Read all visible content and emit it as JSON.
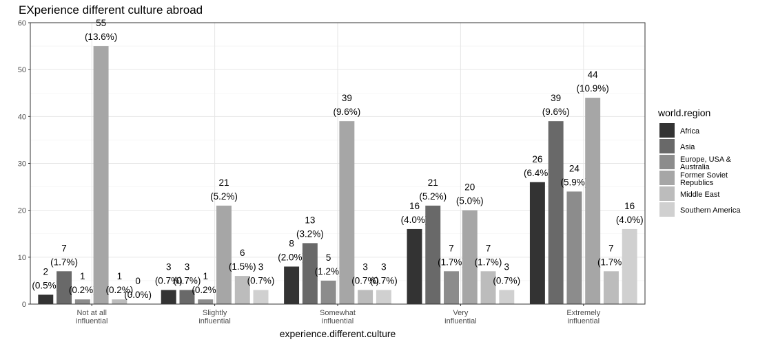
{
  "chart_data": {
    "type": "bar",
    "title": "EXperience different culture abroad",
    "xlabel": "experience.different.culture",
    "ylabel": "",
    "ylim": [
      0,
      60
    ],
    "yticks": [
      "0",
      "10",
      "20",
      "30",
      "40",
      "50",
      "60"
    ],
    "grid": true,
    "legend": {
      "title": "world.region",
      "position": "right"
    },
    "categories": [
      [
        "Not at all",
        "influential"
      ],
      [
        "Slightly",
        "influential"
      ],
      [
        "Somewhat",
        "influential"
      ],
      [
        "Very",
        "influential"
      ],
      [
        "Extremely",
        "influential"
      ]
    ],
    "series": [
      {
        "name": [
          "Africa"
        ],
        "color": "#333333",
        "values": [
          2,
          3,
          8,
          16,
          26
        ],
        "labels": [
          "(0.5%)",
          "(0.7%)",
          "(2.0%)",
          "(4.0%)",
          "(6.4%)"
        ]
      },
      {
        "name": [
          "Asia"
        ],
        "color": "#696969",
        "values": [
          7,
          3,
          13,
          21,
          39
        ],
        "labels": [
          "(1.7%)",
          "(0.7%)",
          "(3.2%)",
          "(5.2%)",
          "(9.6%)"
        ]
      },
      {
        "name": [
          "Europe, USA &",
          "Australia"
        ],
        "color": "#8c8c8c",
        "values": [
          1,
          1,
          5,
          7,
          24
        ],
        "labels": [
          "(0.2%)",
          "(0.2%)",
          "(1.2%)",
          "(1.7%)",
          "(5.9%)"
        ]
      },
      {
        "name": [
          "Former Soviet",
          "Republics"
        ],
        "color": "#a6a6a6",
        "values": [
          55,
          21,
          39,
          20,
          44
        ],
        "labels": [
          "(13.6%)",
          "(5.2%)",
          "(9.6%)",
          "(5.0%)",
          "(10.9%)"
        ]
      },
      {
        "name": [
          "Middle East"
        ],
        "color": "#bcbcbc",
        "values": [
          1,
          6,
          3,
          7,
          7
        ],
        "labels": [
          "(0.2%)",
          "(1.5%)",
          "(0.7%)",
          "(1.7%)",
          "(1.7%)"
        ]
      },
      {
        "name": [
          "Southern America"
        ],
        "color": "#d0d0d0",
        "values": [
          0,
          3,
          3,
          3,
          16
        ],
        "labels": [
          "(0.0%)",
          "(0.7%)",
          "(0.7%)",
          "(0.7%)",
          "(4.0%)"
        ]
      }
    ]
  }
}
